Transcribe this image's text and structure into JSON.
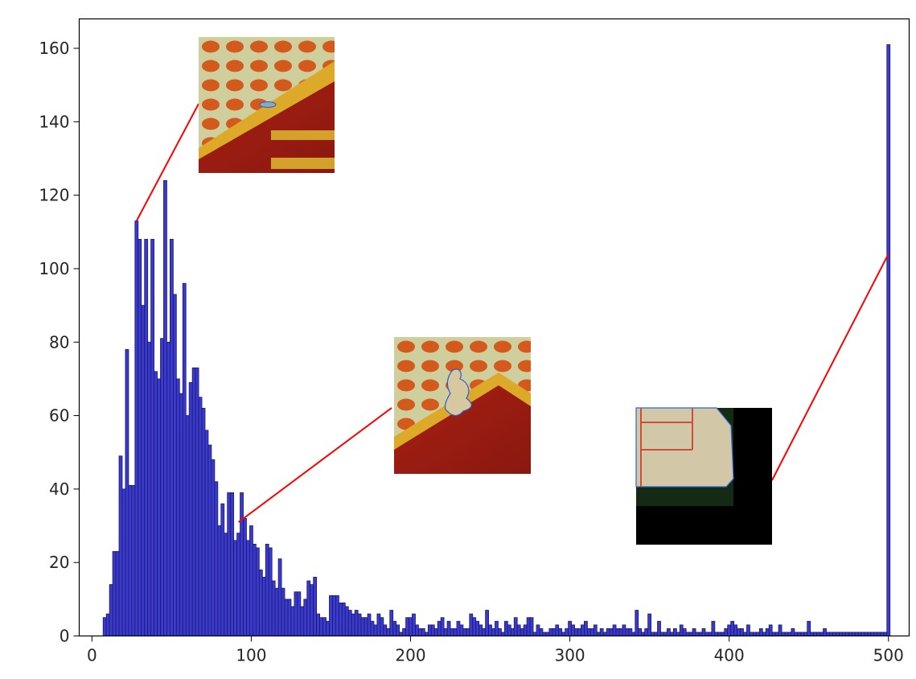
{
  "chart_data": {
    "type": "bar",
    "title": "",
    "xlabel": "",
    "ylabel": "",
    "xlim": [
      -8,
      513
    ],
    "ylim": [
      0,
      168
    ],
    "xticks": [
      0,
      100,
      200,
      300,
      400,
      500
    ],
    "yticks": [
      0,
      20,
      40,
      60,
      80,
      100,
      120,
      140,
      160
    ],
    "grid": false,
    "legend": "none",
    "bin_width": 2,
    "bar_color": "#3a3ad0",
    "edge_color": "#1a1a5e",
    "leader_color": "#ff0000",
    "bins": [
      [
        8,
        5
      ],
      [
        10,
        6
      ],
      [
        12,
        14
      ],
      [
        14,
        23
      ],
      [
        16,
        23
      ],
      [
        18,
        49
      ],
      [
        20,
        40
      ],
      [
        22,
        78
      ],
      [
        24,
        41
      ],
      [
        26,
        41
      ],
      [
        28,
        113
      ],
      [
        30,
        108
      ],
      [
        32,
        90
      ],
      [
        34,
        108
      ],
      [
        36,
        80
      ],
      [
        38,
        108
      ],
      [
        40,
        72
      ],
      [
        42,
        70
      ],
      [
        44,
        81
      ],
      [
        46,
        124
      ],
      [
        48,
        80
      ],
      [
        50,
        108
      ],
      [
        52,
        93
      ],
      [
        54,
        70
      ],
      [
        56,
        66
      ],
      [
        58,
        96
      ],
      [
        60,
        60
      ],
      [
        62,
        69
      ],
      [
        64,
        73
      ],
      [
        66,
        73
      ],
      [
        68,
        65
      ],
      [
        70,
        62
      ],
      [
        72,
        56
      ],
      [
        74,
        52
      ],
      [
        76,
        48
      ],
      [
        78,
        42
      ],
      [
        80,
        30
      ],
      [
        82,
        36
      ],
      [
        84,
        28
      ],
      [
        86,
        39
      ],
      [
        88,
        39
      ],
      [
        90,
        26
      ],
      [
        92,
        28
      ],
      [
        94,
        39
      ],
      [
        96,
        32
      ],
      [
        98,
        26
      ],
      [
        100,
        30
      ],
      [
        102,
        25
      ],
      [
        104,
        24
      ],
      [
        106,
        18
      ],
      [
        108,
        16
      ],
      [
        110,
        25
      ],
      [
        112,
        24
      ],
      [
        114,
        15
      ],
      [
        116,
        13
      ],
      [
        118,
        21
      ],
      [
        120,
        13
      ],
      [
        122,
        10
      ],
      [
        124,
        10
      ],
      [
        126,
        8
      ],
      [
        128,
        12
      ],
      [
        130,
        12
      ],
      [
        132,
        8
      ],
      [
        134,
        10
      ],
      [
        136,
        15
      ],
      [
        138,
        14
      ],
      [
        140,
        16
      ],
      [
        142,
        6
      ],
      [
        144,
        5
      ],
      [
        146,
        5
      ],
      [
        148,
        4
      ],
      [
        150,
        11
      ],
      [
        152,
        11
      ],
      [
        154,
        11
      ],
      [
        156,
        9
      ],
      [
        158,
        9
      ],
      [
        160,
        8
      ],
      [
        162,
        7
      ],
      [
        164,
        6
      ],
      [
        166,
        7
      ],
      [
        168,
        6
      ],
      [
        170,
        5
      ],
      [
        172,
        5
      ],
      [
        174,
        6
      ],
      [
        176,
        4
      ],
      [
        178,
        3
      ],
      [
        180,
        6
      ],
      [
        182,
        5
      ],
      [
        184,
        3
      ],
      [
        186,
        2
      ],
      [
        188,
        7
      ],
      [
        190,
        4
      ],
      [
        192,
        3
      ],
      [
        194,
        1
      ],
      [
        196,
        2
      ],
      [
        198,
        5
      ],
      [
        200,
        5
      ],
      [
        202,
        6
      ],
      [
        204,
        3
      ],
      [
        206,
        2
      ],
      [
        208,
        2
      ],
      [
        210,
        1
      ],
      [
        212,
        3
      ],
      [
        214,
        3
      ],
      [
        216,
        2
      ],
      [
        218,
        4
      ],
      [
        220,
        5
      ],
      [
        222,
        2
      ],
      [
        224,
        4
      ],
      [
        226,
        2
      ],
      [
        228,
        2
      ],
      [
        230,
        4
      ],
      [
        232,
        3
      ],
      [
        234,
        2
      ],
      [
        236,
        2
      ],
      [
        238,
        6
      ],
      [
        240,
        5
      ],
      [
        242,
        4
      ],
      [
        244,
        3
      ],
      [
        246,
        2
      ],
      [
        248,
        7
      ],
      [
        250,
        3
      ],
      [
        252,
        2
      ],
      [
        254,
        4
      ],
      [
        256,
        2
      ],
      [
        258,
        1
      ],
      [
        260,
        4
      ],
      [
        262,
        3
      ],
      [
        264,
        2
      ],
      [
        266,
        5
      ],
      [
        268,
        3
      ],
      [
        270,
        2
      ],
      [
        272,
        3
      ],
      [
        274,
        5
      ],
      [
        276,
        5
      ],
      [
        278,
        1
      ],
      [
        280,
        3
      ],
      [
        282,
        2
      ],
      [
        284,
        1
      ],
      [
        286,
        1
      ],
      [
        288,
        2
      ],
      [
        290,
        2
      ],
      [
        292,
        3
      ],
      [
        294,
        2
      ],
      [
        296,
        1
      ],
      [
        298,
        2
      ],
      [
        300,
        4
      ],
      [
        302,
        3
      ],
      [
        304,
        2
      ],
      [
        306,
        2
      ],
      [
        308,
        3
      ],
      [
        310,
        4
      ],
      [
        312,
        2
      ],
      [
        314,
        2
      ],
      [
        316,
        3
      ],
      [
        318,
        1
      ],
      [
        320,
        2
      ],
      [
        322,
        1
      ],
      [
        324,
        2
      ],
      [
        326,
        2
      ],
      [
        328,
        3
      ],
      [
        330,
        2
      ],
      [
        332,
        2
      ],
      [
        334,
        3
      ],
      [
        336,
        2
      ],
      [
        338,
        2
      ],
      [
        340,
        1
      ],
      [
        342,
        7
      ],
      [
        344,
        2
      ],
      [
        346,
        1
      ],
      [
        348,
        2
      ],
      [
        350,
        6
      ],
      [
        352,
        1
      ],
      [
        354,
        1
      ],
      [
        356,
        4
      ],
      [
        358,
        1
      ],
      [
        360,
        1
      ],
      [
        362,
        2
      ],
      [
        364,
        1
      ],
      [
        366,
        2
      ],
      [
        368,
        1
      ],
      [
        370,
        3
      ],
      [
        372,
        2
      ],
      [
        374,
        1
      ],
      [
        376,
        1
      ],
      [
        378,
        2
      ],
      [
        380,
        1
      ],
      [
        382,
        1
      ],
      [
        384,
        2
      ],
      [
        386,
        1
      ],
      [
        388,
        1
      ],
      [
        390,
        4
      ],
      [
        392,
        1
      ],
      [
        394,
        1
      ],
      [
        396,
        1
      ],
      [
        398,
        2
      ],
      [
        400,
        3
      ],
      [
        402,
        4
      ],
      [
        404,
        3
      ],
      [
        406,
        2
      ],
      [
        408,
        2
      ],
      [
        410,
        1
      ],
      [
        412,
        3
      ],
      [
        414,
        1
      ],
      [
        416,
        1
      ],
      [
        418,
        1
      ],
      [
        420,
        2
      ],
      [
        422,
        1
      ],
      [
        424,
        2
      ],
      [
        426,
        3
      ],
      [
        428,
        1
      ],
      [
        430,
        1
      ],
      [
        432,
        3
      ],
      [
        434,
        1
      ],
      [
        436,
        1
      ],
      [
        438,
        1
      ],
      [
        440,
        2
      ],
      [
        442,
        1
      ],
      [
        444,
        1
      ],
      [
        446,
        1
      ],
      [
        448,
        1
      ],
      [
        450,
        4
      ],
      [
        452,
        1
      ],
      [
        454,
        1
      ],
      [
        456,
        1
      ],
      [
        458,
        1
      ],
      [
        460,
        2
      ],
      [
        462,
        1
      ],
      [
        464,
        1
      ],
      [
        466,
        1
      ],
      [
        468,
        1
      ],
      [
        470,
        1
      ],
      [
        472,
        1
      ],
      [
        474,
        1
      ],
      [
        476,
        1
      ],
      [
        478,
        1
      ],
      [
        480,
        1
      ],
      [
        482,
        1
      ],
      [
        484,
        1
      ],
      [
        486,
        1
      ],
      [
        488,
        1
      ],
      [
        490,
        1
      ],
      [
        492,
        1
      ],
      [
        494,
        1
      ],
      [
        496,
        1
      ],
      [
        498,
        1
      ],
      [
        500,
        161
      ]
    ],
    "annotations": [
      {
        "name": "inset-thumbnail-peak",
        "target": [
          28,
          113
        ],
        "scene": "pads-trace-bars"
      },
      {
        "name": "inset-thumbnail-mid",
        "target": [
          92,
          31
        ],
        "scene": "pads-trace-peak"
      },
      {
        "name": "inset-thumbnail-max",
        "target": [
          500,
          104
        ],
        "scene": "corner-black"
      }
    ]
  }
}
